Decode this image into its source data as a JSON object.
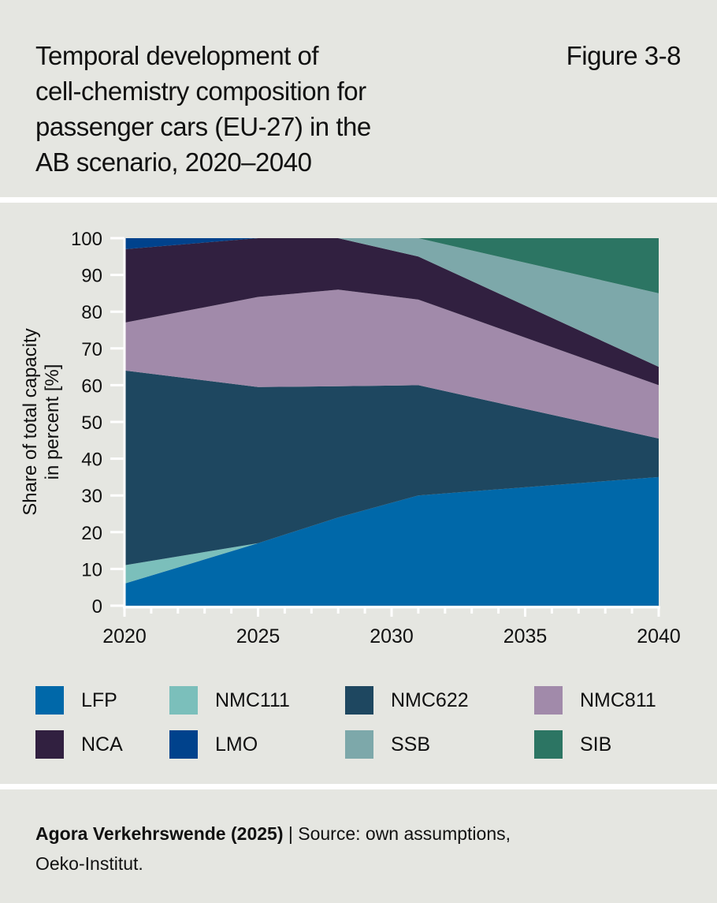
{
  "title_lines": [
    "Temporal development of",
    "cell-chemistry composition for",
    "passenger cars (EU-27) in the",
    "AB scenario, 2020–2040"
  ],
  "figure_label": "Figure 3-8",
  "footer": {
    "bold": "Agora Verkehrswende (2025)",
    "separator": " | ",
    "text": "Source: own assumptions,",
    "text2": "Oeko-Institut."
  },
  "chart_data": {
    "type": "area",
    "stacked": true,
    "ylabel_lines": [
      "Share of total capacity",
      "in percent [%]"
    ],
    "xlabel": "",
    "xlim": [
      2020,
      2040
    ],
    "ylim": [
      0,
      100
    ],
    "x": [
      2020,
      2025,
      2028,
      2031,
      2040
    ],
    "xticks": [
      2020,
      2025,
      2030,
      2035,
      2040
    ],
    "yticks": [
      0,
      10,
      20,
      30,
      40,
      50,
      60,
      70,
      80,
      90,
      100
    ],
    "grid": false,
    "legend_position": "bottom",
    "series": [
      {
        "name": "LFP",
        "color": "#0068a9",
        "values": [
          6,
          17,
          24,
          30,
          35
        ]
      },
      {
        "name": "NMC111",
        "color": "#7bbfbb",
        "values": [
          5,
          0,
          0,
          0,
          0
        ]
      },
      {
        "name": "NMC622",
        "color": "#1e4760",
        "values": [
          53,
          42.5,
          35.7,
          30,
          10.5
        ]
      },
      {
        "name": "NMC811",
        "color": "#a18aaa",
        "values": [
          13,
          24.5,
          26.3,
          23.3,
          14.5
        ]
      },
      {
        "name": "NCA",
        "color": "#312040",
        "values": [
          20,
          16,
          14,
          11.7,
          5
        ]
      },
      {
        "name": "LMO",
        "color": "#00428c",
        "values": [
          3,
          0,
          0,
          0,
          0
        ]
      },
      {
        "name": "SSB",
        "color": "#7da8aa",
        "values": [
          0,
          0,
          0,
          5,
          20
        ]
      },
      {
        "name": "SIB",
        "color": "#2c7563",
        "values": [
          0,
          0,
          0,
          0,
          15
        ]
      }
    ]
  }
}
